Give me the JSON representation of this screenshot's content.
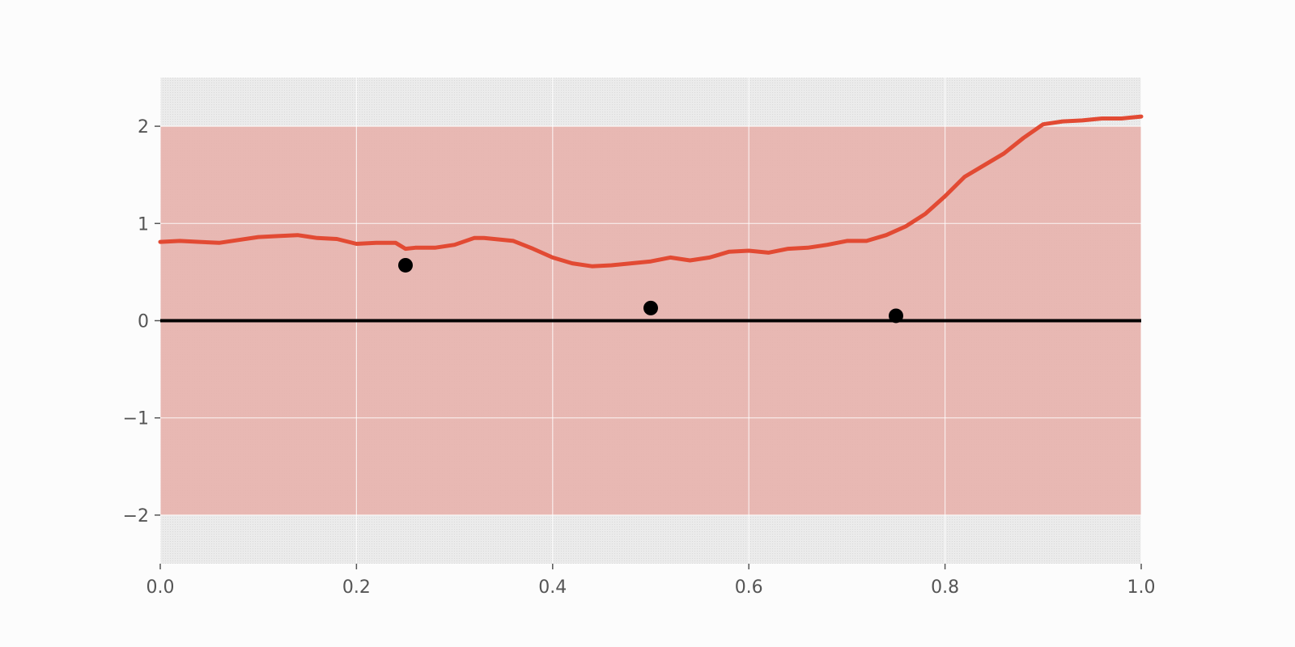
{
  "chart_data": {
    "type": "line",
    "title": "",
    "xlabel": "",
    "ylabel": "",
    "xlim": [
      0,
      1
    ],
    "ylim": [
      -2.5,
      2.5
    ],
    "grid": true,
    "xticks": [
      0,
      0.2,
      0.4,
      0.6,
      0.8,
      1.0
    ],
    "xtick_labels": [
      "0.0",
      "0.2",
      "0.4",
      "0.6",
      "0.8",
      "1.0"
    ],
    "yticks": [
      -2,
      -1,
      0,
      1,
      2
    ],
    "ytick_labels": [
      "−2",
      "−1",
      "0",
      "1",
      "2"
    ],
    "band": {
      "lower": -2,
      "upper": 2,
      "color": "#e7b3ae"
    },
    "zero_line": {
      "y": 0,
      "color": "#000000"
    },
    "series": [
      {
        "color": "#e24a33",
        "x": [
          0.0,
          0.02,
          0.04,
          0.06,
          0.08,
          0.1,
          0.12,
          0.14,
          0.16,
          0.18,
          0.2,
          0.22,
          0.24,
          0.25,
          0.26,
          0.28,
          0.3,
          0.32,
          0.33,
          0.36,
          0.38,
          0.4,
          0.42,
          0.44,
          0.46,
          0.48,
          0.5,
          0.52,
          0.54,
          0.56,
          0.58,
          0.6,
          0.62,
          0.64,
          0.66,
          0.68,
          0.7,
          0.72,
          0.74,
          0.76,
          0.78,
          0.8,
          0.82,
          0.84,
          0.86,
          0.88,
          0.9,
          0.92,
          0.94,
          0.96,
          0.98,
          1.0
        ],
        "y": [
          0.81,
          0.82,
          0.81,
          0.8,
          0.83,
          0.86,
          0.87,
          0.88,
          0.85,
          0.84,
          0.79,
          0.8,
          0.8,
          0.74,
          0.75,
          0.75,
          0.78,
          0.85,
          0.85,
          0.82,
          0.74,
          0.65,
          0.59,
          0.56,
          0.57,
          0.59,
          0.61,
          0.65,
          0.62,
          0.65,
          0.71,
          0.72,
          0.7,
          0.74,
          0.75,
          0.78,
          0.82,
          0.82,
          0.88,
          0.97,
          1.1,
          1.28,
          1.48,
          1.6,
          1.72,
          1.88,
          2.02,
          2.05,
          2.06,
          2.08,
          2.08,
          2.1
        ]
      }
    ],
    "points": {
      "color": "#000000",
      "x": [
        0.25,
        0.5,
        0.75
      ],
      "y": [
        0.57,
        0.13,
        0.05
      ]
    }
  }
}
